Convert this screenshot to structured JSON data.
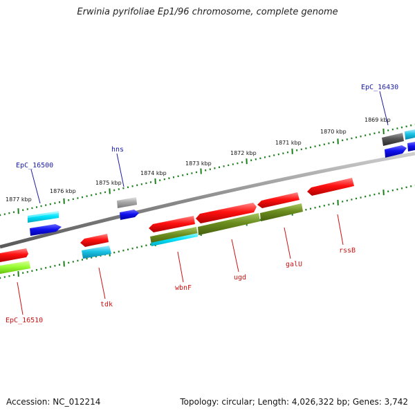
{
  "title": "Erwinia pyrifoliae Ep1/96 chromosome, complete genome",
  "footer": {
    "accession": "Accession: NC_012214",
    "summary": "Topology: circular; Length: 4,026,322 bp; Genes: 3,742"
  },
  "colors": {
    "backbone": "#8c8c8c",
    "tick": "#1a7f1a",
    "label_top": "#1a1aa8",
    "label_bottom": "#cc1111"
  },
  "ruler": [
    {
      "label": "1877 kbp"
    },
    {
      "label": "1876 kbp"
    },
    {
      "label": "1875 kbp"
    },
    {
      "label": "1874 kbp"
    },
    {
      "label": "1873 kbp"
    },
    {
      "label": "1872 kbp"
    },
    {
      "label": "1871 kbp"
    },
    {
      "label": "1870 kbp"
    },
    {
      "label": "1869 kbp"
    }
  ],
  "gene_labels": [
    {
      "text": "EpC_16500",
      "strand": "top"
    },
    {
      "text": "hns",
      "strand": "top"
    },
    {
      "text": "EpC_16430",
      "strand": "top"
    },
    {
      "text": "EpC_16510",
      "strand": "bottom"
    },
    {
      "text": "tdk",
      "strand": "bottom"
    },
    {
      "text": "wbnF",
      "strand": "bottom"
    },
    {
      "text": "ugd",
      "strand": "bottom"
    },
    {
      "text": "galU",
      "strand": "bottom"
    },
    {
      "text": "rssB",
      "strand": "bottom"
    }
  ],
  "features": [
    {
      "color": "#00e5ff",
      "name": "feature-cyan"
    },
    {
      "color": "#1010ee",
      "name": "feature-blue"
    },
    {
      "color": "#ff1414",
      "name": "feature-red"
    },
    {
      "color": "#6a8c1e",
      "name": "feature-olive"
    },
    {
      "color": "#99ff33",
      "name": "feature-lime"
    },
    {
      "color": "#a8a8a8",
      "name": "feature-gray"
    },
    {
      "color": "#555555",
      "name": "feature-darkgray"
    },
    {
      "color": "#19c3e6",
      "name": "feature-lightblue"
    }
  ]
}
